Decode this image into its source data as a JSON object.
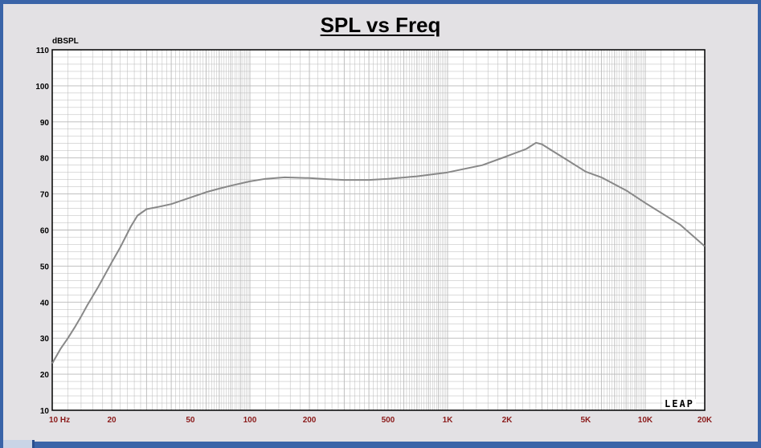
{
  "colors": {
    "frame": "#3a64a8",
    "background": "#e3e1e4",
    "plot_bg": "#ffffff",
    "grid": "#b8b8b8",
    "curve": "#888888",
    "x_tick_label": "#8b1a1a",
    "y_tick_label": "#000000"
  },
  "logo": {
    "text": "LEAP"
  },
  "chart_data": {
    "type": "line",
    "title": "SPL vs Freq",
    "ylabel": "dBSPL",
    "xlabel": "",
    "x_scale": "log",
    "xlim": [
      10,
      20000
    ],
    "ylim": [
      10,
      110
    ],
    "grid": true,
    "y_ticks": [
      "110",
      "100",
      "90",
      "80",
      "70",
      "60",
      "50",
      "40",
      "30",
      "20",
      "10"
    ],
    "x_ticks": [
      {
        "value": 10,
        "label": "10  Hz"
      },
      {
        "value": 20,
        "label": "20"
      },
      {
        "value": 50,
        "label": "50"
      },
      {
        "value": 100,
        "label": "100"
      },
      {
        "value": 200,
        "label": "200"
      },
      {
        "value": 500,
        "label": "500"
      },
      {
        "value": 1000,
        "label": "1K"
      },
      {
        "value": 2000,
        "label": "2K"
      },
      {
        "value": 5000,
        "label": "5K"
      },
      {
        "value": 10000,
        "label": "10K"
      },
      {
        "value": 20000,
        "label": "20K"
      }
    ],
    "series": [
      {
        "x": [
          10,
          11,
          12,
          13,
          14,
          15,
          17,
          20,
          22,
          25,
          27,
          30,
          35,
          40,
          50,
          60,
          70,
          80,
          100,
          120,
          150,
          200,
          250,
          300,
          400,
          500,
          700,
          1000,
          1500,
          2000,
          2500,
          2800,
          3000,
          3500,
          4000,
          5000,
          6000,
          8000,
          10000,
          15000,
          20000
        ],
        "y": [
          23,
          27,
          30,
          33,
          36,
          39,
          44,
          51,
          55,
          61,
          64,
          65.8,
          66.5,
          67.2,
          69,
          70.5,
          71.5,
          72.3,
          73.5,
          74.2,
          74.6,
          74.4,
          74.1,
          73.9,
          73.9,
          74.2,
          74.9,
          76,
          78,
          80.5,
          82.5,
          84.2,
          83.8,
          81.5,
          79.5,
          76.2,
          74.6,
          71,
          67.5,
          61.5,
          55.5
        ]
      }
    ]
  }
}
